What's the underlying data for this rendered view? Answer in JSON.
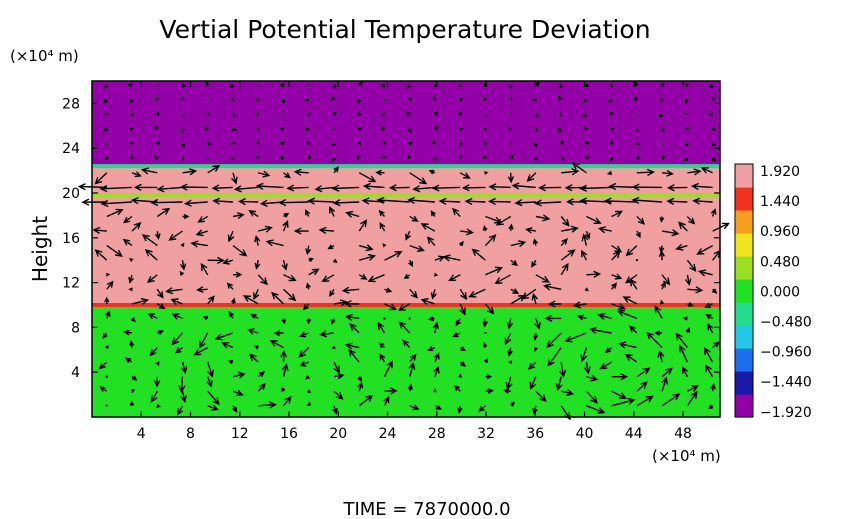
{
  "chart_data": {
    "type": "heatmap",
    "title": "Vertial Potential Temperature Deviation",
    "ylabel": "Height",
    "x_unit_label": "(×10⁴ m)",
    "y_unit_label": "(×10⁴ m)",
    "xlim": [
      0,
      51
    ],
    "ylim": [
      0,
      30
    ],
    "x_ticks": [
      4,
      8,
      12,
      16,
      20,
      24,
      28,
      32,
      36,
      40,
      44,
      48
    ],
    "y_ticks": [
      4,
      8,
      12,
      16,
      20,
      24,
      28
    ],
    "layers": [
      {
        "y_from": 0,
        "y_to": 10,
        "value": 0.0
      },
      {
        "y_from": 10,
        "y_to": 22.4,
        "value": 1.9
      },
      {
        "y_from": 22.4,
        "y_to": 30,
        "value": -1.92
      }
    ],
    "bands": [
      {
        "y": 10.0,
        "value": 1.44
      },
      {
        "y": 19.8,
        "value": 0.48
      },
      {
        "y": 22.4,
        "value": -0.48
      }
    ],
    "colorbar": {
      "labels": [
        "1.920",
        "1.440",
        "0.960",
        "0.480",
        "0.000",
        "−0.480",
        "−0.960",
        "−1.440",
        "−1.920"
      ],
      "min": -1.92,
      "max": 1.92,
      "colors": [
        "#9400a8",
        "#1a1aa8",
        "#1e6ef0",
        "#22c8e6",
        "#22dc8c",
        "#22e022",
        "#9ae022",
        "#f0e61e",
        "#f5a01e",
        "#f0321e",
        "#f0a0a0"
      ]
    },
    "vortices_x": [
      12,
      21,
      40,
      45
    ],
    "time_label": "TIME  =  7870000.0"
  }
}
